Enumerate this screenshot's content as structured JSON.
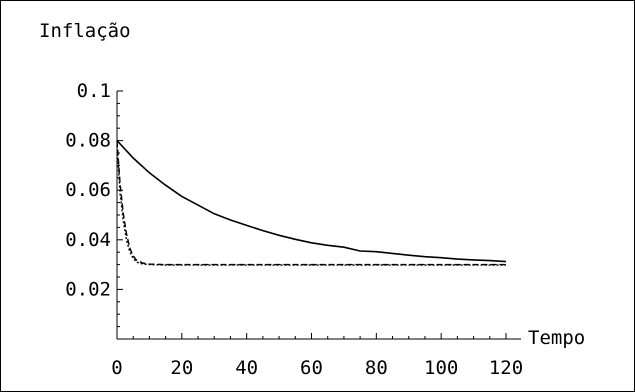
{
  "chart_data": {
    "type": "line",
    "title": "",
    "ylabel": "Inflação",
    "xlabel": "Tempo",
    "xlim": [
      0,
      120
    ],
    "ylim": [
      0,
      0.1
    ],
    "x_ticks": [
      0,
      20,
      40,
      60,
      80,
      100,
      120
    ],
    "x_tick_labels": [
      "0",
      "20",
      "40",
      "60",
      "80",
      "100",
      "120"
    ],
    "y_ticks": [
      0.02,
      0.04,
      0.06,
      0.08,
      0.1
    ],
    "y_tick_labels": [
      "0.02",
      "0.04",
      "0.06",
      "0.08",
      "0.1"
    ],
    "grid": false,
    "legend": "none",
    "series": [
      {
        "style": "solid",
        "color": "#000000",
        "x": [
          0,
          5,
          10,
          15,
          20,
          25,
          30,
          35,
          40,
          45,
          50,
          55,
          60,
          65,
          70,
          75,
          80,
          85,
          90,
          95,
          100,
          105,
          110,
          115,
          120
        ],
        "y": [
          0.08,
          0.073,
          0.067,
          0.062,
          0.0575,
          0.054,
          0.0505,
          0.048,
          0.0458,
          0.0437,
          0.0418,
          0.0402,
          0.0388,
          0.0378,
          0.037,
          0.0355,
          0.0352,
          0.0345,
          0.0338,
          0.0332,
          0.0328,
          0.0322,
          0.0319,
          0.0316,
          0.0312
        ]
      },
      {
        "style": "dashed",
        "color": "#000000",
        "x": [
          0,
          1,
          2,
          3,
          4,
          5,
          6,
          8,
          10,
          15,
          20,
          30,
          40,
          60,
          80,
          100,
          120
        ],
        "y": [
          0.08,
          0.062,
          0.05,
          0.042,
          0.0365,
          0.0335,
          0.0318,
          0.0306,
          0.0302,
          0.03,
          0.03,
          0.03,
          0.03,
          0.03,
          0.03,
          0.03,
          0.03
        ]
      },
      {
        "style": "dotted",
        "color": "#000000",
        "x": [
          0,
          1,
          2,
          3,
          4,
          5,
          6,
          8,
          10,
          15,
          20,
          30,
          40,
          60,
          80,
          100,
          120
        ],
        "y": [
          0.078,
          0.058,
          0.047,
          0.0395,
          0.035,
          0.0325,
          0.031,
          0.0302,
          0.03,
          0.0298,
          0.0298,
          0.0298,
          0.0298,
          0.0298,
          0.0298,
          0.0298,
          0.0298
        ]
      }
    ]
  }
}
